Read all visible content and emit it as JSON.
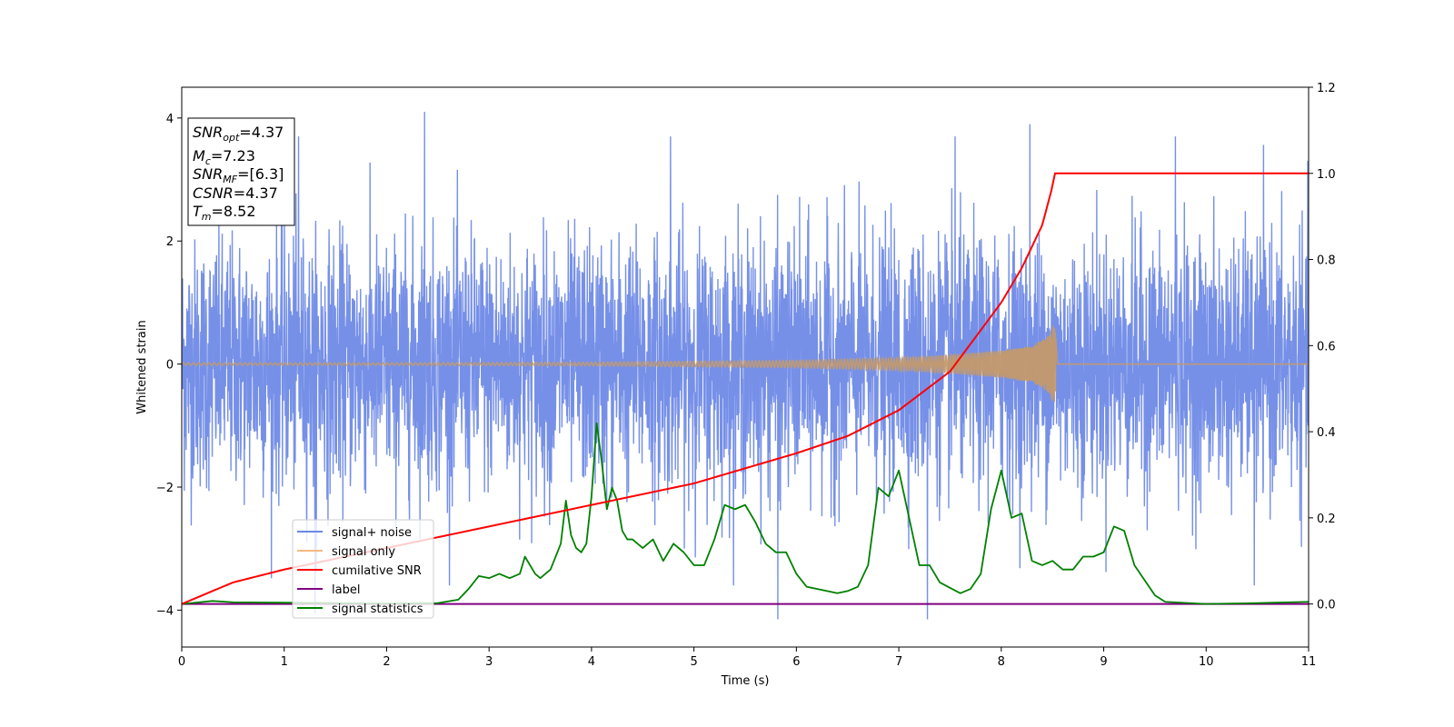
{
  "chart_data": {
    "type": "line",
    "xlabel": "Time (s)",
    "ylabel": "Whitened strain",
    "y2label": "",
    "xlim": [
      0,
      11
    ],
    "ylim": [
      -4.6,
      4.5
    ],
    "y2lim": [
      -0.1,
      1.2
    ],
    "xticks": [
      "0",
      "1",
      "2",
      "3",
      "4",
      "5",
      "6",
      "7",
      "8",
      "9",
      "10",
      "11"
    ],
    "yticks": [
      "4",
      "2",
      "0",
      "−2",
      "−4"
    ],
    "y2ticks": [
      "1.2",
      "1.0",
      "0.8",
      "0.6",
      "0.4",
      "0.2",
      "0.0"
    ],
    "grid": false,
    "legend_position": "lower left",
    "colors": {
      "signal_noise": "#6a87e6",
      "signal_only": "#c49a6c",
      "cumulative_snr": "#ff0000",
      "label": "#800080",
      "signal_statistics": "#008000"
    },
    "series": [
      {
        "name": "signal+ noise",
        "axis": "left",
        "description_values": "noise band approx ±2 with spikes up to 4.1 and down to -4.15 at t≈5.8 and t≈7.3"
      },
      {
        "name": "signal only",
        "axis": "left",
        "envelope": [
          [
            0,
            0.02
          ],
          [
            2,
            0.02
          ],
          [
            4,
            0.03
          ],
          [
            6,
            0.06
          ],
          [
            7,
            0.1
          ],
          [
            7.5,
            0.15
          ],
          [
            8,
            0.22
          ],
          [
            8.3,
            0.3
          ],
          [
            8.45,
            0.45
          ],
          [
            8.52,
            0.68
          ],
          [
            8.55,
            0.0
          ],
          [
            11,
            0.0
          ]
        ]
      },
      {
        "name": "cumilative SNR",
        "axis": "right",
        "x": [
          0,
          0.5,
          1,
          2,
          3,
          4,
          5,
          6,
          6.5,
          7,
          7.5,
          8,
          8.2,
          8.4,
          8.5,
          8.52,
          8.55,
          11
        ],
        "y": [
          0.0,
          0.05,
          0.08,
          0.13,
          0.18,
          0.23,
          0.28,
          0.35,
          0.39,
          0.45,
          0.54,
          0.7,
          0.78,
          0.88,
          0.97,
          1.0,
          1.0,
          1.0
        ]
      },
      {
        "name": "label",
        "axis": "right",
        "x": [
          0,
          11
        ],
        "y": [
          0.0,
          0.0
        ]
      },
      {
        "name": "signal statistics",
        "axis": "right",
        "x": [
          0,
          0.3,
          0.5,
          1,
          1.5,
          2,
          2.5,
          2.7,
          2.8,
          2.9,
          3.0,
          3.1,
          3.2,
          3.3,
          3.35,
          3.45,
          3.5,
          3.6,
          3.7,
          3.75,
          3.8,
          3.85,
          3.9,
          3.95,
          4.0,
          4.05,
          4.1,
          4.15,
          4.2,
          4.25,
          4.3,
          4.35,
          4.4,
          4.5,
          4.6,
          4.7,
          4.8,
          4.9,
          5.0,
          5.1,
          5.2,
          5.3,
          5.4,
          5.5,
          5.6,
          5.7,
          5.8,
          5.9,
          6.0,
          6.1,
          6.3,
          6.4,
          6.5,
          6.6,
          6.7,
          6.8,
          6.9,
          7.0,
          7.1,
          7.2,
          7.3,
          7.4,
          7.6,
          7.7,
          7.8,
          7.9,
          8.0,
          8.1,
          8.2,
          8.3,
          8.4,
          8.5,
          8.6,
          8.7,
          8.8,
          8.9,
          9.0,
          9.1,
          9.2,
          9.3,
          9.5,
          9.6,
          10,
          10.5,
          11
        ],
        "y": [
          0.0,
          0.007,
          0.004,
          0.003,
          0.002,
          0.001,
          0.002,
          0.01,
          0.035,
          0.065,
          0.06,
          0.07,
          0.06,
          0.07,
          0.11,
          0.07,
          0.06,
          0.08,
          0.14,
          0.24,
          0.16,
          0.13,
          0.12,
          0.14,
          0.25,
          0.42,
          0.33,
          0.22,
          0.27,
          0.24,
          0.17,
          0.15,
          0.15,
          0.13,
          0.15,
          0.1,
          0.14,
          0.12,
          0.09,
          0.09,
          0.15,
          0.23,
          0.22,
          0.23,
          0.19,
          0.14,
          0.12,
          0.12,
          0.07,
          0.04,
          0.03,
          0.025,
          0.03,
          0.04,
          0.09,
          0.27,
          0.25,
          0.31,
          0.2,
          0.09,
          0.09,
          0.05,
          0.025,
          0.035,
          0.07,
          0.22,
          0.31,
          0.2,
          0.21,
          0.1,
          0.09,
          0.1,
          0.08,
          0.08,
          0.11,
          0.11,
          0.12,
          0.18,
          0.17,
          0.09,
          0.02,
          0.005,
          0.0,
          0.002,
          0.005
        ]
      }
    ],
    "info_box": {
      "snr_opt": "=4.37",
      "mc": "=7.23",
      "snr_mf": "=[6.3]",
      "csnr": "=4.37",
      "tm": "=8.52"
    }
  }
}
